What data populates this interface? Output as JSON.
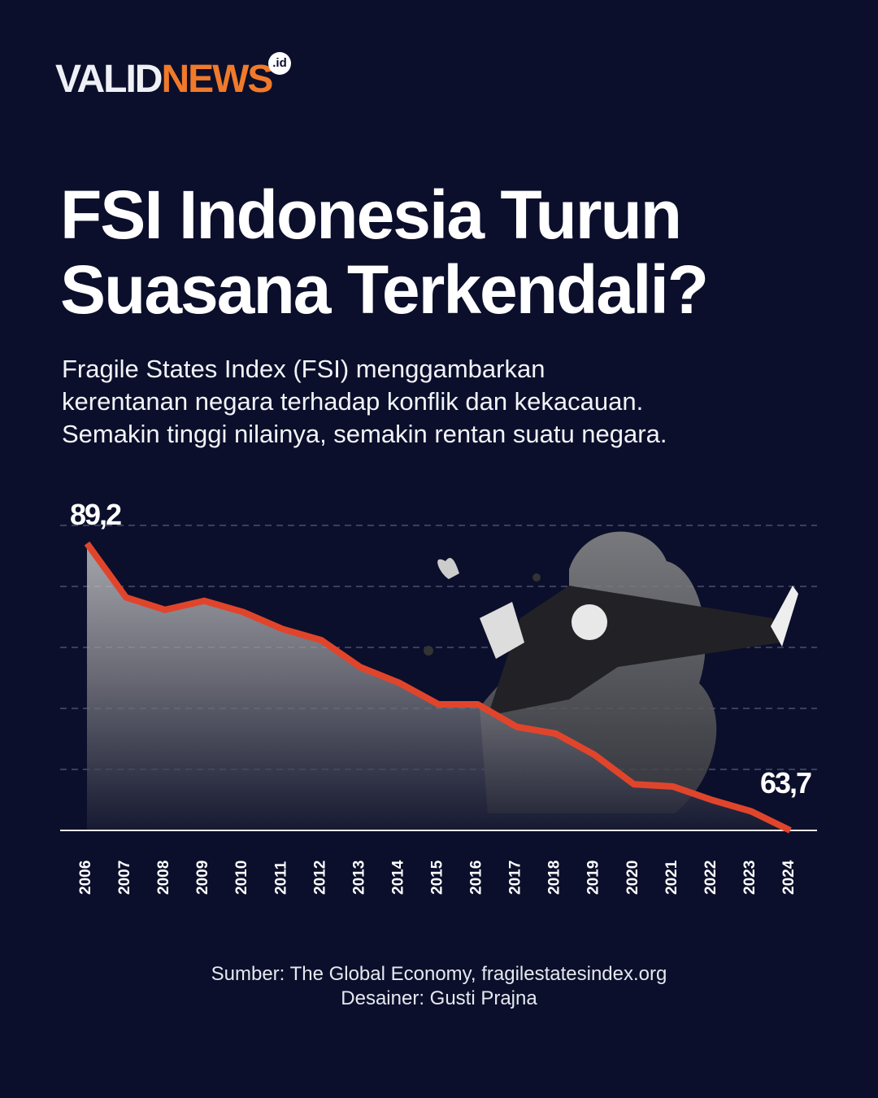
{
  "logo": {
    "part1": "VALID",
    "part2": "NEWS",
    "suffix": ".id"
  },
  "title": {
    "line1": "FSI Indonesia Turun",
    "line2": "Suasana Terkendali?"
  },
  "description": {
    "line1": "Fragile States Index (FSI) menggambarkan",
    "line2": "kerentanan negara terhadap konflik dan kekacauan.",
    "line3": "Semakin tinggi nilainya, semakin rentan suatu negara."
  },
  "colors": {
    "background": "#0b0f2b",
    "line": "#e0452c",
    "logo_accent": "#f07a2a"
  },
  "chart_data": {
    "type": "line",
    "x": [
      "2006",
      "2007",
      "2008",
      "2009",
      "2010",
      "2011",
      "2012",
      "2013",
      "2014",
      "2015",
      "2016",
      "2017",
      "2018",
      "2019",
      "2020",
      "2021",
      "2022",
      "2023",
      "2024"
    ],
    "values": [
      89.2,
      84.4,
      83.3,
      84.1,
      83.1,
      81.6,
      80.6,
      78.2,
      76.8,
      74.9,
      74.9,
      72.9,
      72.3,
      70.4,
      67.8,
      67.6,
      66.4,
      65.4,
      63.7
    ],
    "data_labels": {
      "first": "89,2",
      "last": "63,7"
    },
    "ylim": [
      63.7,
      90.8
    ],
    "grid": "horizontal dashed",
    "xlabel": "",
    "ylabel": "",
    "title": ""
  },
  "footer": {
    "source": "Sumber: The Global Economy, fragilestatesindex.org",
    "designer": "Desainer: Gusti Prajna"
  }
}
